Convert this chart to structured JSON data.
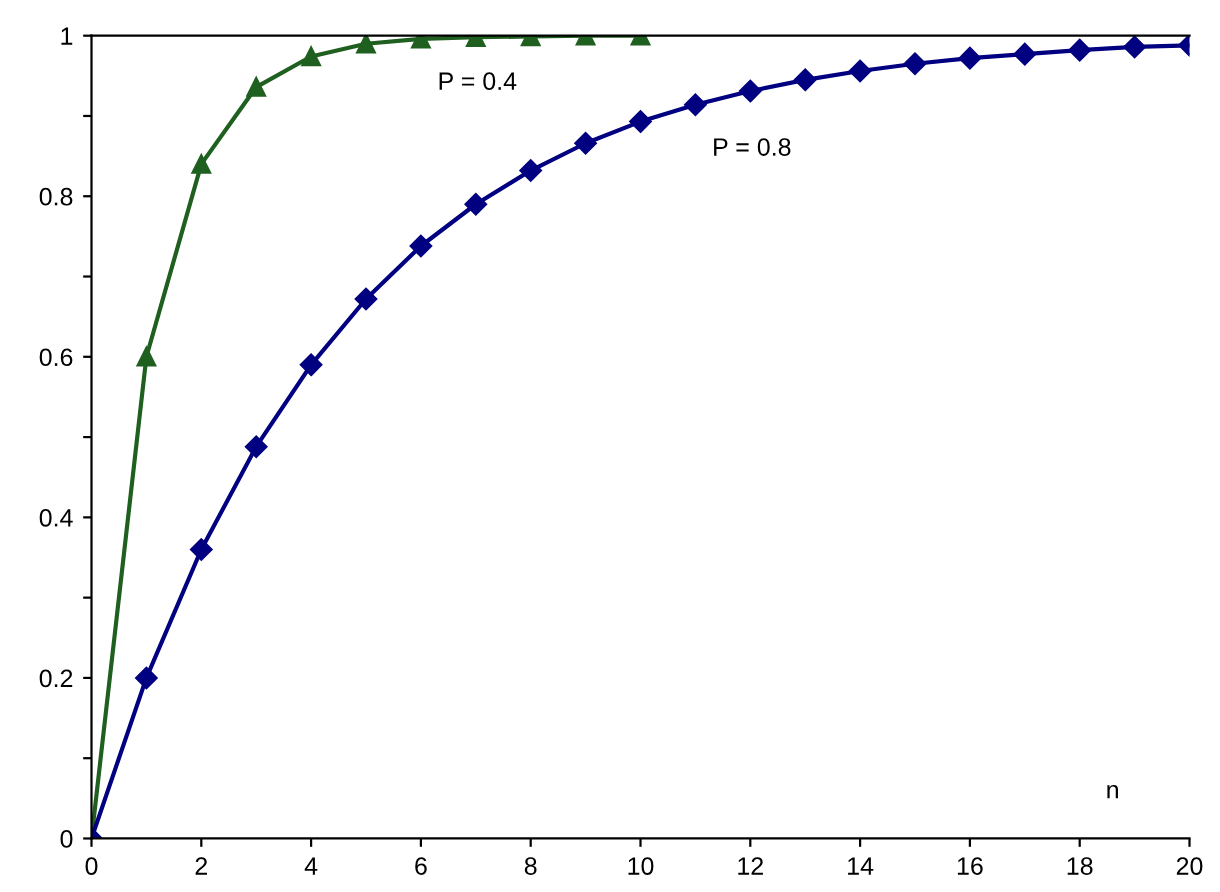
{
  "chart_data": {
    "type": "line",
    "xlabel": "n",
    "series": [
      {
        "name": "P = 0.4",
        "color": "#1f5f1f",
        "marker": "triangle",
        "x": [
          0,
          1,
          2,
          3,
          4,
          5,
          6,
          7,
          8,
          9,
          10
        ],
        "values": [
          0,
          0.6,
          0.84,
          0.936,
          0.974,
          0.99,
          0.996,
          0.998,
          0.999,
          1,
          1
        ]
      },
      {
        "name": "P = 0.8",
        "color": "#000080",
        "marker": "diamond",
        "x": [
          0,
          1,
          2,
          3,
          4,
          5,
          6,
          7,
          8,
          9,
          10,
          11,
          12,
          13,
          14,
          15,
          16,
          17,
          18,
          19,
          20
        ],
        "values": [
          0,
          0.2,
          0.36,
          0.488,
          0.59,
          0.672,
          0.738,
          0.79,
          0.832,
          0.866,
          0.893,
          0.914,
          0.931,
          0.945,
          0.956,
          0.965,
          0.972,
          0.977,
          0.982,
          0.986,
          0.988
        ]
      }
    ],
    "xlim": [
      0,
      20
    ],
    "xticks": [
      0,
      2,
      4,
      6,
      8,
      10,
      12,
      14,
      16,
      18,
      20
    ],
    "ylim": [
      0,
      1
    ],
    "yticks": [
      0,
      {
        "value": 0.1,
        "label": null
      },
      0.2,
      {
        "value": 0.3,
        "label": null
      },
      0.4,
      {
        "value": 0.5,
        "label": null
      },
      0.6,
      {
        "value": 0.7,
        "label": null
      },
      0.8,
      {
        "value": 0.9,
        "label": null
      },
      1
    ],
    "grid": false,
    "legend": false,
    "line_style": "solid"
  }
}
